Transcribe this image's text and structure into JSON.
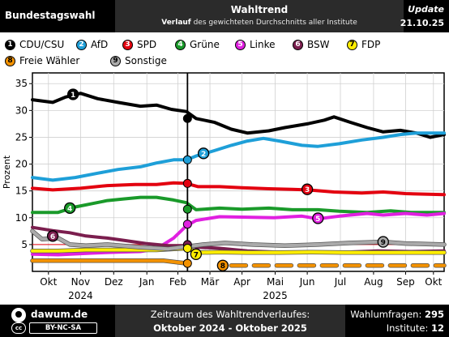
{
  "header": {
    "left_title": "Bundestagswahl",
    "center_title": "Wahltrend",
    "subtitle_bold": "Verlauf",
    "subtitle_rest": " des gewichteten Durchschnitts aller Institute",
    "update_label": "Update",
    "update_date": "21.10.25"
  },
  "legend": [
    {
      "num": "1",
      "name": "CDU/CSU",
      "color": "#000000",
      "text_color": "#ffffff"
    },
    {
      "num": "2",
      "name": "AfD",
      "color": "#1e9fd8",
      "text_color": "#ffffff"
    },
    {
      "num": "3",
      "name": "SPD",
      "color": "#e3000f",
      "text_color": "#ffffff"
    },
    {
      "num": "4",
      "name": "Grüne",
      "color": "#1a9a2a",
      "text_color": "#ffffff"
    },
    {
      "num": "5",
      "name": "Linke",
      "color": "#e020e0",
      "text_color": "#ffffff"
    },
    {
      "num": "6",
      "name": "BSW",
      "color": "#7b1e4e",
      "text_color": "#ffffff"
    },
    {
      "num": "7",
      "name": "FDP",
      "color": "#ffed00",
      "text_color": "#000000"
    },
    {
      "num": "8",
      "name": "Freie Wähler",
      "color": "#f39200",
      "text_color": "#000000"
    },
    {
      "num": "9",
      "name": "Sonstige",
      "color": "#aaaaaa",
      "text_color": "#000000"
    }
  ],
  "chart_data": {
    "type": "line",
    "ylabel": "Prozent",
    "ylim": [
      0,
      37
    ],
    "yticks": [
      5,
      10,
      15,
      20,
      25,
      30,
      35
    ],
    "threshold": 5,
    "x_start": "2024-10-01",
    "x_end": "2025-10-21",
    "election_date": "2025-02-23",
    "month_labels": [
      {
        "label": "Okt",
        "date": "2024-10-16"
      },
      {
        "label": "Nov",
        "date": "2024-11-15"
      },
      {
        "label": "Dez",
        "date": "2024-12-16"
      },
      {
        "label": "Jan",
        "date": "2025-01-16"
      },
      {
        "label": "Feb",
        "date": "2025-02-14"
      },
      {
        "label": "Mär",
        "date": "2025-03-16"
      },
      {
        "label": "Apr",
        "date": "2025-04-15"
      },
      {
        "label": "Mai",
        "date": "2025-05-16"
      },
      {
        "label": "Jun",
        "date": "2025-06-15"
      },
      {
        "label": "Jul",
        "date": "2025-07-16"
      },
      {
        "label": "Aug",
        "date": "2025-08-16"
      },
      {
        "label": "Sep",
        "date": "2025-09-15"
      },
      {
        "label": "Okt",
        "date": "2025-10-11"
      }
    ],
    "year_labels": [
      {
        "label": "2024",
        "date": "2024-11-15"
      },
      {
        "label": "2025",
        "date": "2025-05-16"
      }
    ],
    "series": [
      {
        "name": "CDU/CSU",
        "color": "#000000",
        "dashed": false,
        "points": [
          [
            "2024-10-01",
            32.0
          ],
          [
            "2024-10-20",
            31.5
          ],
          [
            "2024-11-01",
            32.5
          ],
          [
            "2024-11-15",
            33.2
          ],
          [
            "2024-12-01",
            32.2
          ],
          [
            "2024-12-20",
            31.5
          ],
          [
            "2025-01-10",
            30.8
          ],
          [
            "2025-01-25",
            31.0
          ],
          [
            "2025-02-08",
            30.2
          ],
          [
            "2025-02-22",
            29.8
          ],
          [
            "2025-03-03",
            28.5
          ],
          [
            "2025-03-20",
            27.8
          ],
          [
            "2025-04-05",
            26.5
          ],
          [
            "2025-04-20",
            25.8
          ],
          [
            "2025-05-10",
            26.2
          ],
          [
            "2025-05-25",
            26.8
          ],
          [
            "2025-06-15",
            27.5
          ],
          [
            "2025-07-01",
            28.2
          ],
          [
            "2025-07-10",
            28.8
          ],
          [
            "2025-07-25",
            27.8
          ],
          [
            "2025-08-10",
            26.8
          ],
          [
            "2025-08-25",
            26.0
          ],
          [
            "2025-09-10",
            26.3
          ],
          [
            "2025-09-25",
            25.8
          ],
          [
            "2025-10-08",
            25.0
          ],
          [
            "2025-10-21",
            25.5
          ]
        ]
      },
      {
        "name": "AfD",
        "color": "#1e9fd8",
        "dashed": false,
        "points": [
          [
            "2024-10-01",
            17.5
          ],
          [
            "2024-10-20",
            17.0
          ],
          [
            "2024-11-10",
            17.5
          ],
          [
            "2024-12-01",
            18.3
          ],
          [
            "2024-12-20",
            19.0
          ],
          [
            "2025-01-10",
            19.5
          ],
          [
            "2025-01-25",
            20.2
          ],
          [
            "2025-02-10",
            20.8
          ],
          [
            "2025-02-22",
            20.8
          ],
          [
            "2025-03-03",
            21.5
          ],
          [
            "2025-03-20",
            22.5
          ],
          [
            "2025-04-05",
            23.5
          ],
          [
            "2025-04-20",
            24.3
          ],
          [
            "2025-05-05",
            24.8
          ],
          [
            "2025-05-20",
            24.3
          ],
          [
            "2025-06-10",
            23.5
          ],
          [
            "2025-06-25",
            23.3
          ],
          [
            "2025-07-15",
            23.8
          ],
          [
            "2025-08-05",
            24.5
          ],
          [
            "2025-08-25",
            25.0
          ],
          [
            "2025-09-10",
            25.5
          ],
          [
            "2025-09-25",
            25.8
          ],
          [
            "2025-10-21",
            25.8
          ]
        ]
      },
      {
        "name": "SPD",
        "color": "#e3000f",
        "dashed": false,
        "points": [
          [
            "2024-10-01",
            15.5
          ],
          [
            "2024-10-20",
            15.2
          ],
          [
            "2024-11-15",
            15.5
          ],
          [
            "2024-12-10",
            16.0
          ],
          [
            "2025-01-05",
            16.2
          ],
          [
            "2025-01-25",
            16.2
          ],
          [
            "2025-02-10",
            16.5
          ],
          [
            "2025-02-22",
            16.4
          ],
          [
            "2025-03-05",
            15.8
          ],
          [
            "2025-03-25",
            15.8
          ],
          [
            "2025-04-15",
            15.6
          ],
          [
            "2025-05-10",
            15.4
          ],
          [
            "2025-06-01",
            15.3
          ],
          [
            "2025-06-15",
            15.2
          ],
          [
            "2025-07-10",
            14.8
          ],
          [
            "2025-08-05",
            14.6
          ],
          [
            "2025-08-25",
            14.8
          ],
          [
            "2025-09-15",
            14.5
          ],
          [
            "2025-10-21",
            14.3
          ]
        ]
      },
      {
        "name": "Grüne",
        "color": "#1a9a2a",
        "dashed": false,
        "points": [
          [
            "2024-10-01",
            11.0
          ],
          [
            "2024-10-25",
            11.0
          ],
          [
            "2024-11-10",
            12.0
          ],
          [
            "2024-11-25",
            12.6
          ],
          [
            "2024-12-10",
            13.2
          ],
          [
            "2024-12-25",
            13.5
          ],
          [
            "2025-01-10",
            13.8
          ],
          [
            "2025-01-25",
            13.8
          ],
          [
            "2025-02-10",
            13.3
          ],
          [
            "2025-02-22",
            12.8
          ],
          [
            "2025-03-03",
            11.5
          ],
          [
            "2025-03-25",
            11.8
          ],
          [
            "2025-04-15",
            11.6
          ],
          [
            "2025-05-10",
            11.8
          ],
          [
            "2025-06-01",
            11.5
          ],
          [
            "2025-06-25",
            11.5
          ],
          [
            "2025-07-15",
            11.2
          ],
          [
            "2025-08-10",
            11.0
          ],
          [
            "2025-09-01",
            11.3
          ],
          [
            "2025-09-20",
            11.0
          ],
          [
            "2025-10-21",
            11.0
          ]
        ]
      },
      {
        "name": "Linke",
        "color": "#e020e0",
        "dashed": false,
        "points": [
          [
            "2024-10-01",
            3.2
          ],
          [
            "2024-10-25",
            3.1
          ],
          [
            "2024-11-25",
            3.4
          ],
          [
            "2024-12-20",
            3.6
          ],
          [
            "2025-01-10",
            3.7
          ],
          [
            "2025-01-25",
            4.2
          ],
          [
            "2025-02-10",
            6.2
          ],
          [
            "2025-02-22",
            8.5
          ],
          [
            "2025-03-03",
            9.5
          ],
          [
            "2025-03-25",
            10.2
          ],
          [
            "2025-04-20",
            10.1
          ],
          [
            "2025-05-15",
            10.0
          ],
          [
            "2025-06-10",
            10.3
          ],
          [
            "2025-06-25",
            9.8
          ],
          [
            "2025-07-15",
            10.3
          ],
          [
            "2025-08-10",
            10.8
          ],
          [
            "2025-08-25",
            10.5
          ],
          [
            "2025-09-15",
            10.8
          ],
          [
            "2025-10-05",
            10.5
          ],
          [
            "2025-10-21",
            10.8
          ]
        ]
      },
      {
        "name": "BSW",
        "color": "#7b1e4e",
        "dashed": false,
        "points": [
          [
            "2024-10-01",
            8.2
          ],
          [
            "2024-10-20",
            7.6
          ],
          [
            "2024-11-05",
            7.2
          ],
          [
            "2024-11-20",
            6.6
          ],
          [
            "2024-12-10",
            6.2
          ],
          [
            "2024-12-25",
            5.8
          ],
          [
            "2025-01-15",
            5.2
          ],
          [
            "2025-02-05",
            4.8
          ],
          [
            "2025-02-22",
            4.8
          ],
          [
            "2025-03-05",
            4.5
          ],
          [
            "2025-03-25",
            4.3
          ],
          [
            "2025-04-20",
            3.8
          ],
          [
            "2025-05-20",
            3.6
          ],
          [
            "2025-06-20",
            3.5
          ],
          [
            "2025-07-20",
            3.6
          ],
          [
            "2025-08-20",
            3.8
          ],
          [
            "2025-09-20",
            3.7
          ],
          [
            "2025-10-21",
            3.8
          ]
        ]
      },
      {
        "name": "FDP",
        "color": "#ffed00",
        "dashed": false,
        "points": [
          [
            "2024-10-01",
            3.8
          ],
          [
            "2024-10-25",
            3.8
          ],
          [
            "2024-11-20",
            4.0
          ],
          [
            "2024-12-15",
            4.0
          ],
          [
            "2025-01-10",
            4.0
          ],
          [
            "2025-01-25",
            4.0
          ],
          [
            "2025-02-10",
            4.2
          ],
          [
            "2025-02-22",
            4.3
          ],
          [
            "2025-03-05",
            3.5
          ],
          [
            "2025-03-25",
            3.6
          ],
          [
            "2025-04-20",
            3.5
          ],
          [
            "2025-05-20",
            3.5
          ],
          [
            "2025-06-20",
            3.6
          ],
          [
            "2025-07-20",
            3.5
          ],
          [
            "2025-08-20",
            3.5
          ],
          [
            "2025-09-20",
            3.5
          ],
          [
            "2025-10-21",
            3.5
          ]
        ]
      },
      {
        "name": "Freie Wähler",
        "color": "#f39200",
        "dashed": false,
        "points": [
          [
            "2024-10-01",
            2.0
          ],
          [
            "2024-11-01",
            2.0
          ],
          [
            "2024-12-01",
            2.0
          ],
          [
            "2025-01-01",
            2.0
          ],
          [
            "2025-02-01",
            2.0
          ],
          [
            "2025-02-22",
            1.5
          ]
        ]
      },
      {
        "name": "Freie Wähler",
        "color": "#f39200",
        "dashed": true,
        "points": [
          [
            "2025-04-05",
            1.1
          ],
          [
            "2025-10-21",
            1.1
          ]
        ]
      },
      {
        "name": "Sonstige",
        "color": "#aaaaaa",
        "dashed": false,
        "points": [
          [
            "2024-10-01",
            7.5
          ],
          [
            "2024-10-10",
            6.0
          ],
          [
            "2024-10-25",
            6.2
          ],
          [
            "2024-11-05",
            5.0
          ],
          [
            "2024-11-20",
            4.8
          ],
          [
            "2024-12-10",
            5.0
          ],
          [
            "2025-01-10",
            4.5
          ],
          [
            "2025-02-05",
            4.2
          ],
          [
            "2025-02-22",
            4.6
          ],
          [
            "2025-03-10",
            5.0
          ],
          [
            "2025-03-30",
            5.3
          ],
          [
            "2025-04-25",
            5.0
          ],
          [
            "2025-05-25",
            4.8
          ],
          [
            "2025-06-25",
            5.0
          ],
          [
            "2025-07-25",
            5.3
          ],
          [
            "2025-08-25",
            5.5
          ],
          [
            "2025-09-15",
            5.2
          ],
          [
            "2025-10-21",
            5.0
          ]
        ]
      }
    ],
    "markers": [
      {
        "num": "1",
        "date": "2024-11-08",
        "value": 33.0,
        "color": "#000000",
        "text_color": "#ffffff"
      },
      {
        "num": "2",
        "date": "2025-03-10",
        "value": 22.0,
        "color": "#1e9fd8",
        "text_color": "#ffffff"
      },
      {
        "num": "3",
        "date": "2025-06-15",
        "value": 15.3,
        "color": "#e3000f",
        "text_color": "#ffffff"
      },
      {
        "num": "4",
        "date": "2024-11-05",
        "value": 11.8,
        "color": "#1a9a2a",
        "text_color": "#ffffff"
      },
      {
        "num": "5",
        "date": "2025-06-25",
        "value": 9.9,
        "color": "#e020e0",
        "text_color": "#ffffff"
      },
      {
        "num": "6",
        "date": "2024-10-20",
        "value": 6.6,
        "color": "#7b1e4e",
        "text_color": "#ffffff"
      },
      {
        "num": "7",
        "date": "2025-03-03",
        "value": 3.2,
        "color": "#ffed00",
        "text_color": "#000000"
      },
      {
        "num": "8",
        "date": "2025-03-28",
        "value": 1.1,
        "color": "#f39200",
        "text_color": "#000000"
      },
      {
        "num": "9",
        "date": "2025-08-25",
        "value": 5.5,
        "color": "#aaaaaa",
        "text_color": "#000000"
      }
    ],
    "election_results": [
      {
        "name": "CDU/CSU",
        "value": 28.5,
        "color": "#000000"
      },
      {
        "name": "AfD",
        "value": 20.8,
        "color": "#1e9fd8"
      },
      {
        "name": "SPD",
        "value": 16.4,
        "color": "#e3000f"
      },
      {
        "name": "Grüne",
        "value": 11.6,
        "color": "#1a9a2a"
      },
      {
        "name": "Linke",
        "value": 8.8,
        "color": "#e020e0"
      },
      {
        "name": "BSW",
        "value": 5.0,
        "color": "#7b1e4e"
      },
      {
        "name": "FDP",
        "value": 4.3,
        "color": "#ffed00"
      },
      {
        "name": "Freie Wähler",
        "value": 1.5,
        "color": "#f39200"
      }
    ]
  },
  "footer": {
    "site": "dawum.de",
    "cc_label": "cc",
    "license": "BY-NC-SA",
    "period_label": "Zeitraum des Wahltrendverlaufes:",
    "period_value": "Oktober 2024 - Oktober 2025",
    "polls_label": "Wahlumfragen:",
    "polls_value": "295",
    "institutes_label": "Institute:",
    "institutes_value": "12"
  }
}
